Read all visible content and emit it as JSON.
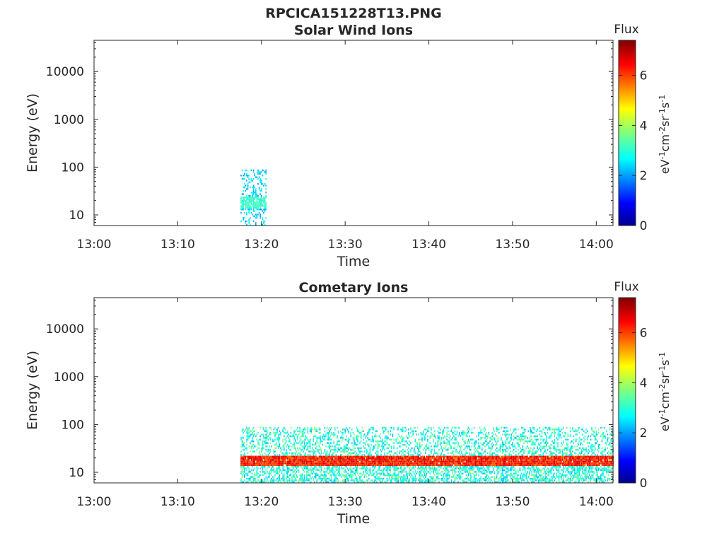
{
  "figure_title": "RPCICA151228T13.PNG",
  "colorbar_units_html": "eV<tspan dy='-6' font-size='11'>-1</tspan><tspan dy='6'>cm</tspan><tspan dy='-6' font-size='11'>-2</tspan><tspan dy='6'>sr</tspan><tspan dy='-6' font-size='11'>-1</tspan><tspan dy='6'>s</tspan><tspan dy='-6' font-size='11'>-1</tspan>",
  "chart_data": [
    {
      "type": "heatmap",
      "title": "Solar Wind Ions",
      "xlabel": "Time",
      "ylabel": "Energy (eV)",
      "y_scale": "log",
      "ylim": [
        6,
        45000
      ],
      "xlim": [
        "13:00",
        "14:02"
      ],
      "x_ticks": [
        "13:00",
        "13:10",
        "13:20",
        "13:30",
        "13:40",
        "13:50",
        "14:00"
      ],
      "y_ticks": [
        "10",
        "100",
        "1000",
        "10000"
      ],
      "colorbar": {
        "label": "Flux",
        "units": "eV-1cm-2sr-1s-1",
        "range": [
          0,
          7.4
        ],
        "ticks": [
          "0",
          "2",
          "4",
          "6"
        ],
        "colormap": "jet"
      },
      "regions": [
        {
          "t_start": "13:17:30",
          "t_end": "13:20:30",
          "energy_range": [
            6,
            85
          ],
          "peak_energy": 17,
          "peak_flux": 3.3
        }
      ]
    },
    {
      "type": "heatmap",
      "title": "Cometary Ions",
      "xlabel": "Time",
      "ylabel": "Energy (eV)",
      "y_scale": "log",
      "ylim": [
        6,
        45000
      ],
      "xlim": [
        "13:00",
        "14:02"
      ],
      "x_ticks": [
        "13:00",
        "13:10",
        "13:20",
        "13:30",
        "13:40",
        "13:50",
        "14:00"
      ],
      "y_ticks": [
        "10",
        "100",
        "1000",
        "10000"
      ],
      "colorbar": {
        "label": "Flux",
        "units": "eV-1cm-2sr-1s-1",
        "range": [
          0,
          7.4
        ],
        "ticks": [
          "0",
          "2",
          "4",
          "6"
        ],
        "colormap": "jet"
      },
      "regions": [
        {
          "t_start": "13:17:30",
          "t_end": "14:02:00",
          "energy_range": [
            6,
            85
          ],
          "peak_energy": 17,
          "peak_flux": 6.8
        }
      ]
    }
  ]
}
